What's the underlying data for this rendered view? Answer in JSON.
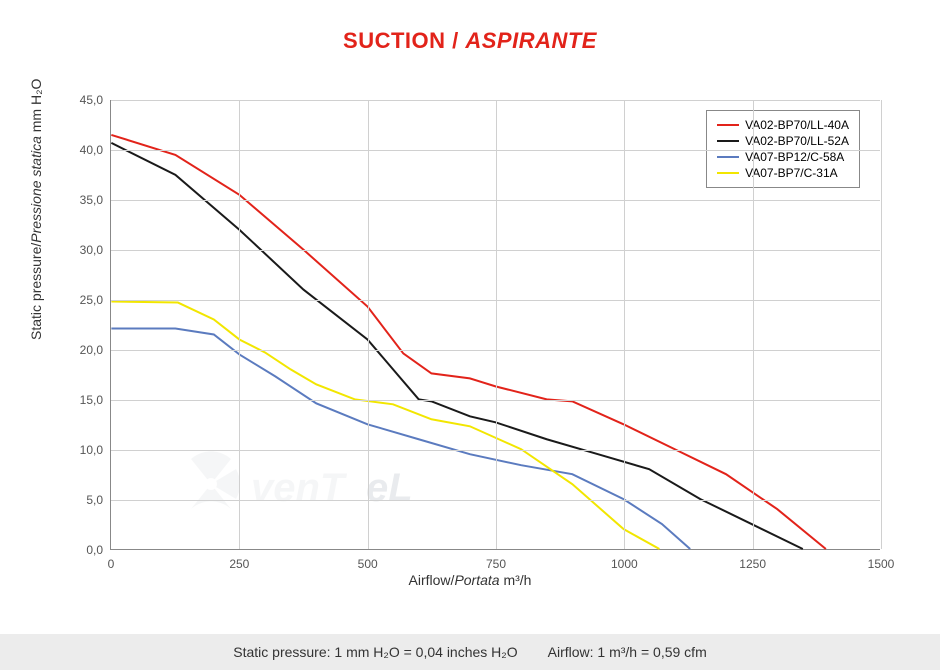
{
  "title": {
    "main": "SUCTION",
    "sep": " / ",
    "alt": "ASPIRANTE",
    "color": "#e2231a",
    "fontsize": 22
  },
  "chart": {
    "type": "line",
    "background_color": "#ffffff",
    "grid_color": "#d0d0d0",
    "axis_color": "#888888",
    "xlim": [
      0,
      1500
    ],
    "ylim": [
      0,
      45
    ],
    "xtick_step": 250,
    "ytick_step": 5,
    "yticks": [
      "0,0",
      "5,0",
      "10,0",
      "15,0",
      "20,0",
      "25,0",
      "30,0",
      "35,0",
      "40,0",
      "45,0"
    ],
    "xticks": [
      "0",
      "250",
      "500",
      "750",
      "1000",
      "1250",
      "1500"
    ],
    "xlabel_prefix": "Airflow/",
    "xlabel_italic": "Portata",
    "xlabel_unit": "  m³/h",
    "ylabel_prefix": "Static pressure/",
    "ylabel_italic": "Pressione statica",
    "ylabel_unit": "  mm  H₂O",
    "label_fontsize": 14,
    "tick_fontsize": 12,
    "line_width": 2,
    "series": [
      {
        "name": "VA02-BP70/LL-40A",
        "color": "#e2231a",
        "points": [
          [
            0,
            41.5
          ],
          [
            125,
            39.5
          ],
          [
            250,
            35.5
          ],
          [
            375,
            30
          ],
          [
            500,
            24.3
          ],
          [
            570,
            19.6
          ],
          [
            625,
            17.6
          ],
          [
            700,
            17.1
          ],
          [
            750,
            16.3
          ],
          [
            850,
            15
          ],
          [
            900,
            14.8
          ],
          [
            1000,
            12.5
          ],
          [
            1100,
            10
          ],
          [
            1200,
            7.5
          ],
          [
            1300,
            4
          ],
          [
            1395,
            0
          ]
        ]
      },
      {
        "name": "VA02-BP70/LL-52A",
        "color": "#1a1a1a",
        "points": [
          [
            0,
            40.7
          ],
          [
            125,
            37.5
          ],
          [
            250,
            32
          ],
          [
            375,
            26
          ],
          [
            500,
            21
          ],
          [
            600,
            15
          ],
          [
            625,
            14.8
          ],
          [
            700,
            13.3
          ],
          [
            750,
            12.7
          ],
          [
            850,
            11
          ],
          [
            950,
            9.5
          ],
          [
            1050,
            8
          ],
          [
            1150,
            5
          ],
          [
            1250,
            2.5
          ],
          [
            1350,
            0
          ]
        ]
      },
      {
        "name": "VA07-BP12/C-58A",
        "color": "#5b7bbf",
        "points": [
          [
            0,
            22.1
          ],
          [
            125,
            22.1
          ],
          [
            200,
            21.5
          ],
          [
            250,
            19.5
          ],
          [
            320,
            17.3
          ],
          [
            400,
            14.6
          ],
          [
            500,
            12.5
          ],
          [
            600,
            11
          ],
          [
            700,
            9.5
          ],
          [
            800,
            8.4
          ],
          [
            900,
            7.5
          ],
          [
            1000,
            5
          ],
          [
            1075,
            2.5
          ],
          [
            1130,
            0
          ]
        ]
      },
      {
        "name": "VA07-BP7/C-31A",
        "color": "#f2e600",
        "points": [
          [
            0,
            24.8
          ],
          [
            130,
            24.7
          ],
          [
            200,
            23
          ],
          [
            250,
            21
          ],
          [
            300,
            19.7
          ],
          [
            350,
            18
          ],
          [
            400,
            16.5
          ],
          [
            475,
            15
          ],
          [
            550,
            14.5
          ],
          [
            625,
            13
          ],
          [
            700,
            12.3
          ],
          [
            800,
            10
          ],
          [
            900,
            6.5
          ],
          [
            1000,
            2
          ],
          [
            1070,
            0
          ]
        ]
      }
    ],
    "legend": {
      "position": "top-right",
      "border_color": "#888888",
      "fontsize": 12
    }
  },
  "watermark": {
    "text_light": "venT",
    "text_dark": "eL",
    "color_light": "#bfc7c9",
    "color_dark": "#6a7a8a",
    "opacity": 0.14
  },
  "footer": {
    "background": "#ececec",
    "left": "Static pressure: 1 mm H₂O = 0,04 inches H₂O",
    "right": "Airflow: 1 m³/h = 0,59 cfm",
    "fontsize": 14
  }
}
